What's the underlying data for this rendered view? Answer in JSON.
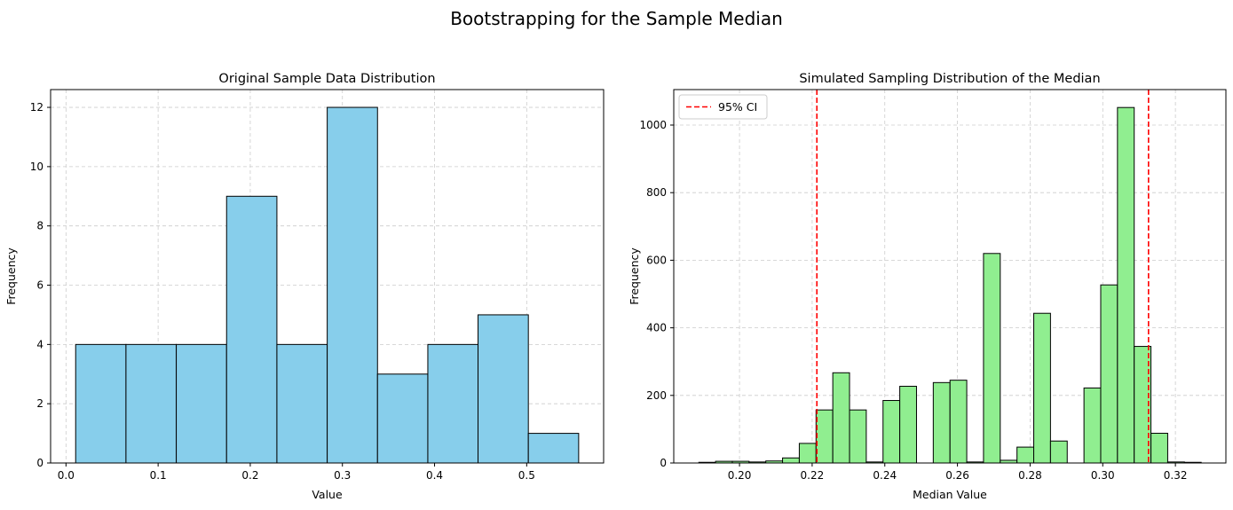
{
  "figure": {
    "suptitle": "Bootstrapping for the Sample Median"
  },
  "chart_data": [
    {
      "type": "bar",
      "subtype": "histogram",
      "title": "Original Sample Data Distribution",
      "xlabel": "Value",
      "ylabel": "Frequency",
      "xlim": [
        -0.0167,
        0.5835
      ],
      "ylim": [
        0,
        12.6
      ],
      "xticks": [
        0.0,
        0.1,
        0.2,
        0.3,
        0.4,
        0.5
      ],
      "xtick_labels": [
        "0.0",
        "0.1",
        "0.2",
        "0.3",
        "0.4",
        "0.5"
      ],
      "yticks": [
        0,
        2,
        4,
        6,
        8,
        10,
        12
      ],
      "ytick_labels": [
        "0",
        "2",
        "4",
        "6",
        "8",
        "10",
        "12"
      ],
      "grid": true,
      "bin_edges": [
        0.0105,
        0.0651,
        0.1197,
        0.1743,
        0.2289,
        0.2835,
        0.3381,
        0.3927,
        0.4472,
        0.5018,
        0.5564
      ],
      "values": [
        4,
        4,
        4,
        9,
        4,
        12,
        3,
        4,
        5,
        1
      ],
      "color": "#87CEEB",
      "edgecolor": "#000000"
    },
    {
      "type": "bar",
      "subtype": "histogram",
      "title": "Simulated Sampling Distribution of the Median",
      "xlabel": "Median Value",
      "ylabel": "Frequency",
      "xlim": [
        0.1819,
        0.3339
      ],
      "ylim": [
        0,
        1105
      ],
      "xticks": [
        0.2,
        0.22,
        0.24,
        0.26,
        0.28,
        0.3,
        0.32
      ],
      "xtick_labels": [
        "0.20",
        "0.22",
        "0.24",
        "0.26",
        "0.28",
        "0.30",
        "0.32"
      ],
      "yticks": [
        0,
        200,
        400,
        600,
        800,
        1000
      ],
      "ytick_labels": [
        "0",
        "200",
        "400",
        "600",
        "800",
        "1000"
      ],
      "grid": true,
      "bin_start": 0.1888,
      "bin_width": 0.00461,
      "values": [
        2,
        5,
        5,
        3,
        6,
        15,
        58,
        157,
        267,
        157,
        3,
        185,
        227,
        0,
        238,
        245,
        3,
        620,
        8,
        47,
        443,
        65,
        0,
        222,
        527,
        1052,
        345,
        88,
        3,
        2
      ],
      "color": "#90EE90",
      "edgecolor": "#000000",
      "ci_lines": [
        0.2213,
        0.3126
      ],
      "ci_color": "#FF0000",
      "legend": {
        "labels": [
          "95% CI"
        ],
        "placement": "upper left"
      }
    }
  ]
}
